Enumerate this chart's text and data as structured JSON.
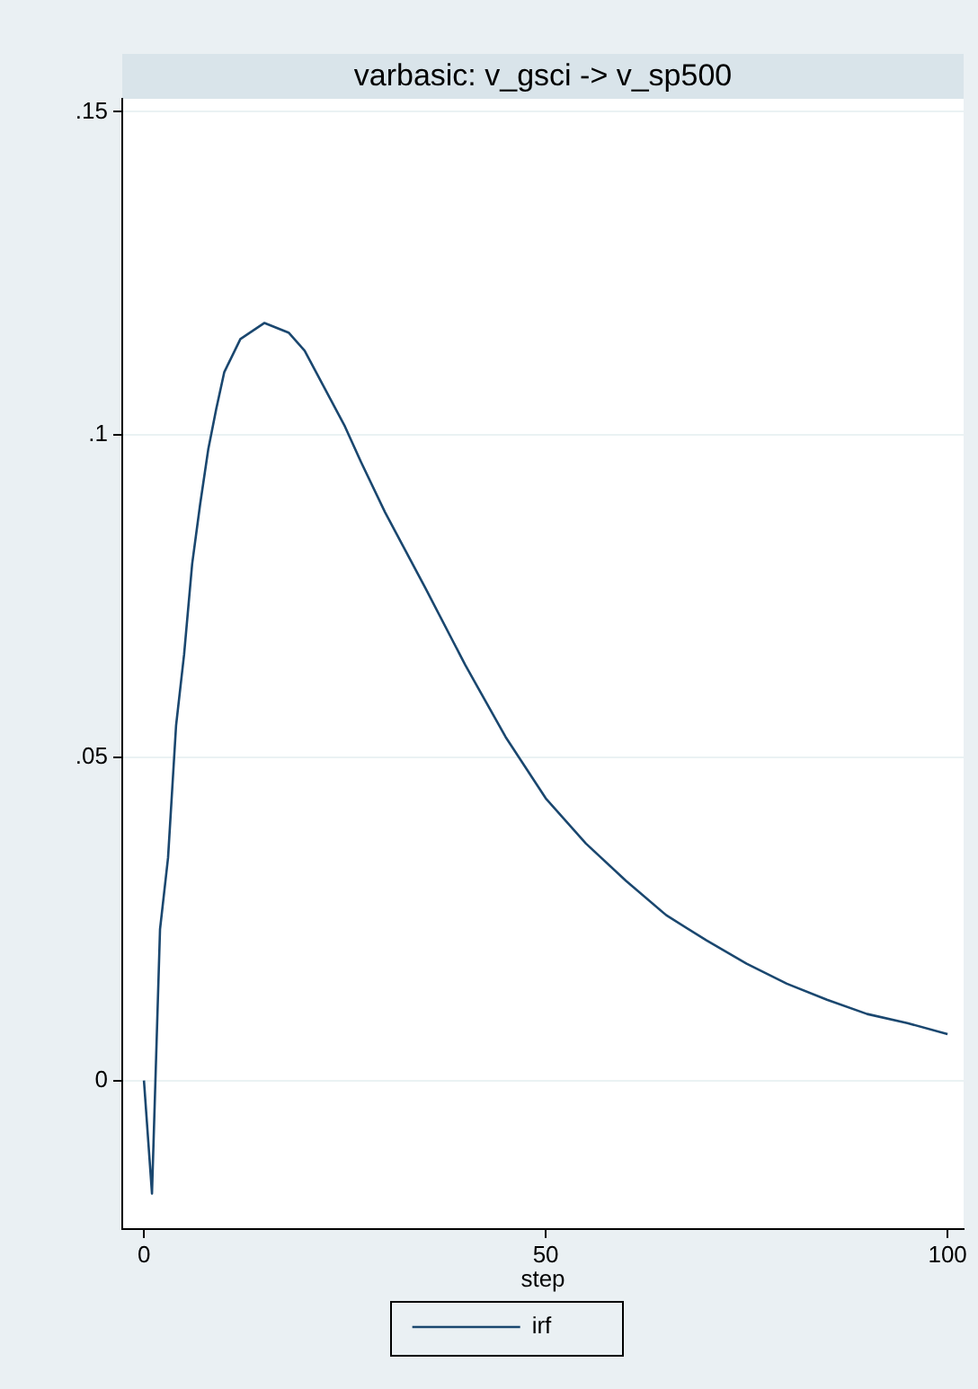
{
  "chart_data": {
    "type": "line",
    "title": "varbasic: v_gsci -> v_sp500",
    "xlabel": "step",
    "series": [
      {
        "name": "irf",
        "color": "#1a476f",
        "x": [
          0,
          1,
          2,
          3,
          4,
          5,
          6,
          7,
          8,
          9,
          10,
          12,
          15,
          18,
          20,
          25,
          27,
          30,
          35,
          40,
          45,
          50,
          55,
          60,
          65,
          70,
          75,
          80,
          85,
          90,
          95,
          100
        ],
        "values": [
          0,
          -0.0175,
          0.0234,
          0.0345,
          0.055,
          0.066,
          0.08,
          0.0893,
          0.0977,
          0.104,
          0.1097,
          0.1148,
          0.1173,
          0.1158,
          0.113,
          0.1013,
          0.0958,
          0.088,
          0.0763,
          0.0643,
          0.0532,
          0.0437,
          0.0367,
          0.0309,
          0.0256,
          0.0217,
          0.0181,
          0.015,
          0.0125,
          0.0103,
          0.0089,
          0.0072
        ]
      }
    ],
    "xlim": [
      -2.7,
      102
    ],
    "xticks": [
      0,
      50,
      100
    ],
    "ylim": [
      -0.023,
      0.152
    ],
    "yticks": [
      {
        "value": 0,
        "label": "0"
      },
      {
        "value": 0.05,
        "label": ".05"
      },
      {
        "value": 0.1,
        "label": ".1"
      },
      {
        "value": 0.15,
        "label": ".15"
      }
    ],
    "grid": "y",
    "legend": "bottom",
    "marker": "none",
    "line_style": "solid"
  }
}
